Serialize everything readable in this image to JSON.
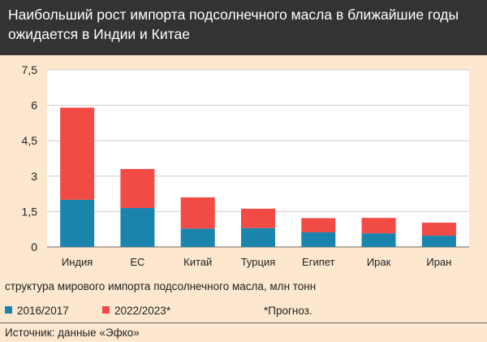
{
  "title": "Наибольший рост импорта подсолнечного масла в ближайшие годы ожидается в Индии и Китае",
  "caption": "структура мирового импорта подсолнечного масла, млн тонн",
  "note": "*Прогноз.",
  "source": "Источник: данные «Эфко»",
  "colors": {
    "title_background": "#333333",
    "page_background": "#fde7cf",
    "plot_background": "#ffffff",
    "series_2016": "#1a84ad",
    "series_2022": "#f24a45"
  },
  "chart_data": {
    "type": "bar",
    "stacked": true,
    "categories": [
      "Индия",
      "ЕС",
      "Китай",
      "Турция",
      "Египет",
      "Ирак",
      "Иран"
    ],
    "series": [
      {
        "name": "2016/2017",
        "color": "#1a84ad",
        "values": [
          2.0,
          1.65,
          0.78,
          0.8,
          0.62,
          0.58,
          0.48
        ]
      },
      {
        "name": "2022/2023*",
        "color": "#f24a45",
        "values": [
          3.9,
          1.65,
          1.32,
          0.82,
          0.6,
          0.65,
          0.55
        ]
      }
    ],
    "ylim": [
      0,
      7.5
    ],
    "yticks": [
      0,
      1.5,
      3,
      4.5,
      6,
      7.5
    ],
    "ytick_labels": [
      "0",
      "1,5",
      "3",
      "4,5",
      "6",
      "7,5"
    ],
    "grid": true,
    "legend_position": "bottom-left"
  }
}
